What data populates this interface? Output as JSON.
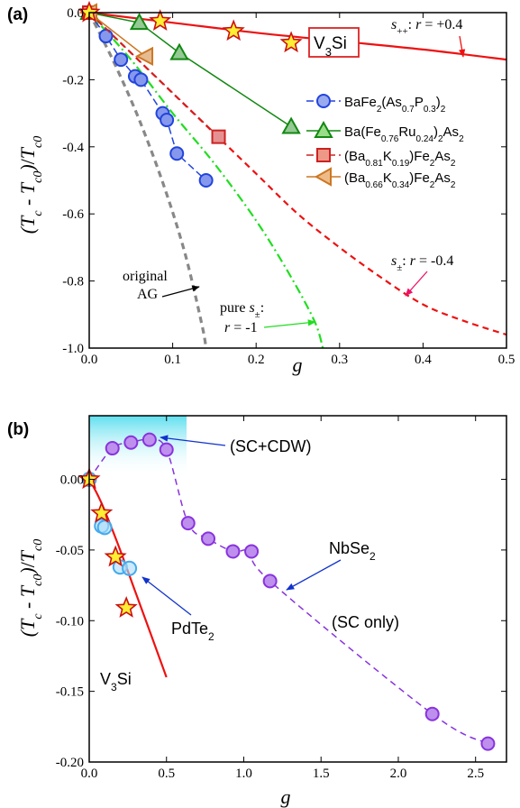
{
  "chart_data": [
    {
      "panel_label": "(a)",
      "type": "line",
      "xlabel": "g",
      "ylabel": "(Tc-Tc0)/Tc0",
      "xlim": [
        0,
        0.5
      ],
      "ylim": [
        -1.0,
        0.0
      ],
      "xticks": [
        "0.0",
        "0.1",
        "0.2",
        "0.3",
        "0.4",
        "0.5"
      ],
      "yticks": [
        "0.0",
        "-0.2",
        "-0.4",
        "-0.6",
        "-0.8",
        "-1.0"
      ],
      "legend_position": "center-right",
      "series": [
        {
          "name": "BaFe2(As0.7P0.3)2",
          "color": "#2244dd",
          "marker": "circle",
          "x": [
            0.0,
            0.02,
            0.038,
            0.055,
            0.062,
            0.088,
            0.093,
            0.105,
            0.14
          ],
          "y": [
            0.0,
            -0.07,
            -0.14,
            -0.19,
            -0.2,
            -0.3,
            -0.32,
            -0.42,
            -0.5
          ]
        },
        {
          "name": "Ba(Fe0.76Ru0.24)2As2",
          "color": "#118811",
          "marker": "triangle-up",
          "x": [
            0.0,
            0.06,
            0.108,
            0.242
          ],
          "y": [
            0.0,
            -0.03,
            -0.12,
            -0.34
          ]
        },
        {
          "name": "(Ba0.81K0.19)Fe2As2",
          "color": "#cc2222",
          "marker": "square",
          "x": [
            0.0,
            0.155
          ],
          "y": [
            0.0,
            -0.37
          ]
        },
        {
          "name": "(Ba0.66K0.34)Fe2As2",
          "color": "#cc7722",
          "marker": "triangle-left",
          "x": [
            0.0,
            0.067
          ],
          "y": [
            0.0,
            -0.13
          ]
        },
        {
          "name": "V3Si",
          "color": "#ee1111",
          "marker": "star",
          "x": [
            0.0,
            0.085,
            0.173,
            0.242
          ],
          "y": [
            0.0,
            -0.025,
            -0.055,
            -0.09
          ]
        }
      ],
      "curves": [
        {
          "label": "s++: r = +0.4",
          "style": "solid",
          "color": "#ee1111",
          "x": [
            0.0,
            0.1,
            0.2,
            0.3,
            0.4,
            0.5
          ],
          "y": [
            0.0,
            -0.03,
            -0.06,
            -0.085,
            -0.11,
            -0.14
          ]
        },
        {
          "label": "s±: r = -0.4",
          "style": "dashed",
          "color": "#ee1111",
          "x": [
            0.0,
            0.05,
            0.1,
            0.15,
            0.2,
            0.25,
            0.3,
            0.35,
            0.4,
            0.45,
            0.5
          ],
          "y": [
            0.0,
            -0.12,
            -0.24,
            -0.36,
            -0.48,
            -0.6,
            -0.7,
            -0.79,
            -0.87,
            -0.92,
            -0.96
          ]
        },
        {
          "label": "pure s±: r = -1",
          "style": "dashdot",
          "color": "#22dd22",
          "x": [
            0.0,
            0.05,
            0.1,
            0.15,
            0.2,
            0.24,
            0.27,
            0.28
          ],
          "y": [
            0.0,
            -0.14,
            -0.3,
            -0.45,
            -0.62,
            -0.78,
            -0.92,
            -1.0
          ]
        },
        {
          "label": "original AG",
          "style": "dashed",
          "color": "#888888",
          "x": [
            0.0,
            0.03,
            0.06,
            0.09,
            0.115,
            0.135,
            0.14
          ],
          "y": [
            0.0,
            -0.15,
            -0.32,
            -0.52,
            -0.72,
            -0.93,
            -1.0
          ]
        }
      ],
      "annotations": [
        "V3Si",
        "s++: r = +0.4",
        "s±: r = -0.4",
        "pure s±:",
        "r = -1",
        "original",
        "AG"
      ]
    },
    {
      "panel_label": "(b)",
      "type": "line",
      "xlabel": "g",
      "ylabel": "(Tc-Tc0)/Tc0",
      "xlim": [
        0,
        2.7
      ],
      "ylim": [
        -0.2,
        0.045
      ],
      "xticks": [
        "0.0",
        "0.5",
        "1.0",
        "1.5",
        "2.0",
        "2.5"
      ],
      "yticks": [
        "0.00",
        "-0.05",
        "-0.10",
        "-0.15",
        "-0.20"
      ],
      "series": [
        {
          "name": "NbSe2",
          "color": "#8833dd",
          "marker": "circle",
          "x": [
            0.0,
            0.15,
            0.27,
            0.39,
            0.5,
            0.64,
            0.77,
            0.93,
            1.05,
            1.17,
            2.22,
            2.58
          ],
          "y": [
            0.0,
            0.022,
            0.026,
            0.028,
            0.021,
            -0.031,
            -0.042,
            -0.051,
            -0.051,
            -0.072,
            -0.166,
            -0.187
          ]
        },
        {
          "name": "PdTe2",
          "color": "#44aaee",
          "marker": "circle-open",
          "x": [
            0.0,
            0.08,
            0.1,
            0.2,
            0.26
          ],
          "y": [
            0.0,
            -0.033,
            -0.034,
            -0.062,
            -0.063
          ]
        },
        {
          "name": "V3Si",
          "color": "#ee1111",
          "marker": "star",
          "x": [
            0.0,
            0.08,
            0.17,
            0.24
          ],
          "y": [
            0.0,
            -0.024,
            -0.055,
            -0.091
          ]
        }
      ],
      "curves": [
        {
          "label": "V3Si fit",
          "style": "solid",
          "color": "#ee1111",
          "x": [
            0.0,
            0.05,
            0.1,
            0.2,
            0.3,
            0.4,
            0.5
          ],
          "y": [
            0.0,
            -0.01,
            -0.022,
            -0.05,
            -0.08,
            -0.11,
            -0.14
          ]
        }
      ],
      "annotations": [
        "(SC+CDW)",
        "NbSe2",
        "(SC only)",
        "PdTe2",
        "V3Si"
      ]
    }
  ]
}
